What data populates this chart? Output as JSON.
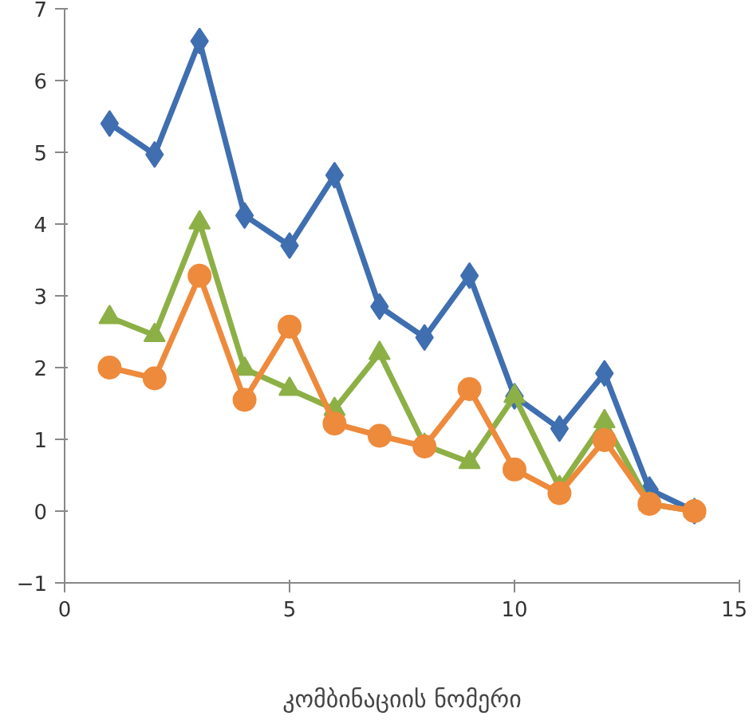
{
  "chart_data": {
    "type": "line",
    "xlabel": "კომბინაციის ნომერი",
    "x": [
      1,
      2,
      3,
      4,
      5,
      6,
      7,
      8,
      9,
      10,
      11,
      12,
      13,
      14
    ],
    "series": [
      {
        "color": "#3f6fb0",
        "marker": "diamond",
        "values": [
          5.4,
          4.97,
          6.55,
          4.12,
          3.7,
          4.68,
          2.85,
          2.42,
          3.28,
          1.6,
          1.15,
          1.92,
          0.3,
          0
        ]
      },
      {
        "color": "#8db046",
        "marker": "triangle",
        "values": [
          2.7,
          2.45,
          4.02,
          1.98,
          1.7,
          1.42,
          2.2,
          0.92,
          0.68,
          1.6,
          0.33,
          1.25,
          0.1,
          0
        ]
      },
      {
        "color": "#ee8a3c",
        "marker": "circle",
        "values": [
          2.0,
          1.85,
          3.28,
          1.55,
          2.57,
          1.22,
          1.05,
          0.9,
          1.7,
          0.58,
          0.25,
          0.99,
          0.1,
          0
        ]
      }
    ],
    "xlim": [
      0,
      15
    ],
    "xticks": [
      0,
      5,
      10,
      15
    ],
    "ylim": [
      -1,
      7
    ],
    "yticks": [
      -1,
      0,
      1,
      2,
      3,
      4,
      5,
      6,
      7
    ],
    "grid": false
  }
}
